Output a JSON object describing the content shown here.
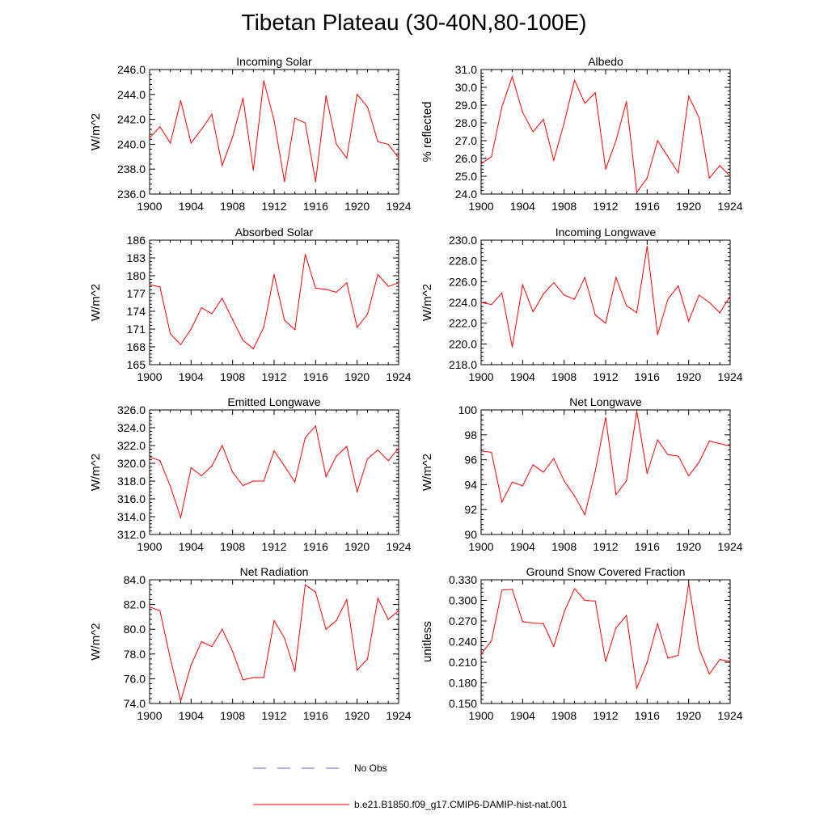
{
  "figure_title": "Tibetan Plateau (30-40N,80-100E)",
  "legend": {
    "obs_label": "No Obs",
    "model_label": "b.e21.B1850.f09_g17.CMIP6-DAMIP-hist-nat.001",
    "obs_color": "#6b6bd6",
    "model_color": "#ff0000"
  },
  "chart_data": [
    {
      "type": "line",
      "title": "Incoming Solar",
      "xlabel": "",
      "ylabel": "W/m^2",
      "xlim": [
        1900,
        1924
      ],
      "ylim": [
        236.0,
        246.0
      ],
      "xticks": [
        1900,
        1904,
        1908,
        1912,
        1916,
        1920,
        1924
      ],
      "yticks": [
        "236.0",
        "238.0",
        "240.0",
        "242.0",
        "244.0",
        "246.0"
      ],
      "series": [
        {
          "name": "b.e21.B1850.f09_g17.CMIP6-DAMIP-hist-nat.001",
          "color": "#ff0000",
          "x": [
            1900,
            1901,
            1902,
            1903,
            1904,
            1905,
            1906,
            1907,
            1908,
            1909,
            1910,
            1911,
            1912,
            1913,
            1914,
            1915,
            1916,
            1917,
            1918,
            1919,
            1920,
            1921,
            1922,
            1923,
            1924
          ],
          "y": [
            240.5,
            241.4,
            240.1,
            243.5,
            240.1,
            241.2,
            242.4,
            238.3,
            240.6,
            243.7,
            237.9,
            245.1,
            241.9,
            237.0,
            242.1,
            241.7,
            237.0,
            243.9,
            240.0,
            238.9,
            244.0,
            243.0,
            240.2,
            240.0,
            238.9
          ]
        }
      ]
    },
    {
      "type": "line",
      "title": "Albedo",
      "xlabel": "",
      "ylabel": "% reflected",
      "xlim": [
        1900,
        1924
      ],
      "ylim": [
        24.0,
        31.0
      ],
      "xticks": [
        1900,
        1904,
        1908,
        1912,
        1916,
        1920,
        1924
      ],
      "yticks": [
        "24.0",
        "25.0",
        "26.0",
        "27.0",
        "28.0",
        "29.0",
        "30.0",
        "31.0"
      ],
      "series": [
        {
          "name": "b.e21.B1850.f09_g17.CMIP6-DAMIP-hist-nat.001",
          "color": "#ff0000",
          "x": [
            1900,
            1901,
            1902,
            1903,
            1904,
            1905,
            1906,
            1907,
            1908,
            1909,
            1910,
            1911,
            1912,
            1913,
            1914,
            1915,
            1916,
            1917,
            1918,
            1919,
            1920,
            1921,
            1922,
            1923,
            1924
          ],
          "y": [
            25.7,
            26.1,
            28.9,
            30.6,
            28.6,
            27.5,
            28.2,
            25.9,
            28.0,
            30.4,
            29.1,
            29.7,
            25.4,
            27.0,
            29.2,
            24.1,
            24.9,
            27.0,
            26.1,
            25.2,
            29.5,
            28.3,
            24.9,
            25.6,
            25.0
          ]
        }
      ]
    },
    {
      "type": "line",
      "title": "Absorbed Solar",
      "xlabel": "",
      "ylabel": "W/m^2",
      "xlim": [
        1900,
        1924
      ],
      "ylim": [
        165,
        186
      ],
      "xticks": [
        1900,
        1904,
        1908,
        1912,
        1916,
        1920,
        1924
      ],
      "yticks": [
        "165",
        "168",
        "171",
        "174",
        "177",
        "180",
        "183",
        "186"
      ],
      "series": [
        {
          "name": "b.e21.B1850.f09_g17.CMIP6-DAMIP-hist-nat.001",
          "color": "#ff0000",
          "x": [
            1900,
            1901,
            1902,
            1903,
            1904,
            1905,
            1906,
            1907,
            1908,
            1909,
            1910,
            1911,
            1912,
            1913,
            1914,
            1915,
            1916,
            1917,
            1918,
            1919,
            1920,
            1921,
            1922,
            1923,
            1924
          ],
          "y": [
            178.5,
            178.1,
            170.2,
            168.4,
            171.0,
            174.6,
            173.6,
            176.2,
            172.6,
            169.1,
            167.7,
            171.3,
            180.2,
            172.5,
            170.9,
            183.6,
            177.9,
            177.7,
            177.2,
            178.8,
            171.3,
            173.5,
            180.2,
            178.2,
            178.8
          ]
        }
      ]
    },
    {
      "type": "line",
      "title": "Incoming Longwave",
      "xlabel": "",
      "ylabel": "W/m^2",
      "xlim": [
        1900,
        1924
      ],
      "ylim": [
        218.0,
        230.0
      ],
      "xticks": [
        1900,
        1904,
        1908,
        1912,
        1916,
        1920,
        1924
      ],
      "yticks": [
        "218.0",
        "220.0",
        "222.0",
        "224.0",
        "226.0",
        "228.0",
        "230.0"
      ],
      "series": [
        {
          "name": "b.e21.B1850.f09_g17.CMIP6-DAMIP-hist-nat.001",
          "color": "#ff0000",
          "x": [
            1900,
            1901,
            1902,
            1903,
            1904,
            1905,
            1906,
            1907,
            1908,
            1909,
            1910,
            1911,
            1912,
            1913,
            1914,
            1915,
            1916,
            1917,
            1918,
            1919,
            1920,
            1921,
            1922,
            1923,
            1924
          ],
          "y": [
            224.0,
            223.8,
            224.9,
            219.7,
            225.7,
            223.1,
            224.8,
            225.9,
            224.7,
            224.3,
            226.4,
            222.8,
            222.0,
            226.4,
            223.7,
            223.0,
            229.4,
            220.9,
            224.3,
            225.6,
            222.2,
            224.7,
            224.0,
            223.0,
            224.6
          ]
        }
      ]
    },
    {
      "type": "line",
      "title": "Emitted Longwave",
      "xlabel": "",
      "ylabel": "W/m^2",
      "xlim": [
        1900,
        1924
      ],
      "ylim": [
        312.0,
        326.0
      ],
      "xticks": [
        1900,
        1904,
        1908,
        1912,
        1916,
        1920,
        1924
      ],
      "yticks": [
        "312.0",
        "314.0",
        "316.0",
        "318.0",
        "320.0",
        "322.0",
        "324.0",
        "326.0"
      ],
      "series": [
        {
          "name": "b.e21.B1850.f09_g17.CMIP6-DAMIP-hist-nat.001",
          "color": "#ff0000",
          "x": [
            1900,
            1901,
            1902,
            1903,
            1904,
            1905,
            1906,
            1907,
            1908,
            1909,
            1910,
            1911,
            1912,
            1913,
            1914,
            1915,
            1916,
            1917,
            1918,
            1919,
            1920,
            1921,
            1922,
            1923,
            1924
          ],
          "y": [
            320.7,
            320.3,
            317.4,
            313.9,
            319.5,
            318.6,
            319.7,
            322.0,
            319.0,
            317.5,
            318.0,
            318.0,
            321.4,
            319.7,
            317.9,
            322.9,
            324.2,
            318.5,
            320.8,
            321.9,
            316.8,
            320.5,
            321.5,
            320.3,
            321.7
          ]
        }
      ]
    },
    {
      "type": "line",
      "title": "Net Longwave",
      "xlabel": "",
      "ylabel": "W/m^2",
      "xlim": [
        1900,
        1924
      ],
      "ylim": [
        90,
        100
      ],
      "xticks": [
        1900,
        1904,
        1908,
        1912,
        1916,
        1920,
        1924
      ],
      "yticks": [
        "90",
        "92",
        "94",
        "96",
        "98",
        "100"
      ],
      "series": [
        {
          "name": "b.e21.B1850.f09_g17.CMIP6-DAMIP-hist-nat.001",
          "color": "#ff0000",
          "x": [
            1900,
            1901,
            1902,
            1903,
            1904,
            1905,
            1906,
            1907,
            1908,
            1909,
            1910,
            1911,
            1912,
            1913,
            1914,
            1915,
            1916,
            1917,
            1918,
            1919,
            1920,
            1921,
            1922,
            1923,
            1924
          ],
          "y": [
            96.7,
            96.6,
            92.6,
            94.2,
            93.9,
            95.6,
            95.0,
            96.1,
            94.3,
            93.1,
            91.6,
            95.1,
            99.4,
            93.2,
            94.3,
            99.9,
            94.9,
            97.6,
            96.4,
            96.3,
            94.7,
            95.8,
            97.5,
            97.3,
            97.1
          ]
        }
      ]
    },
    {
      "type": "line",
      "title": "Net Radiation",
      "xlabel": "",
      "ylabel": "W/m^2",
      "xlim": [
        1900,
        1924
      ],
      "ylim": [
        74.0,
        84.0
      ],
      "xticks": [
        1900,
        1904,
        1908,
        1912,
        1916,
        1920,
        1924
      ],
      "yticks": [
        "74.0",
        "76.0",
        "78.0",
        "80.0",
        "82.0",
        "84.0"
      ],
      "series": [
        {
          "name": "b.e21.B1850.f09_g17.CMIP6-DAMIP-hist-nat.001",
          "color": "#ff0000",
          "x": [
            1900,
            1901,
            1902,
            1903,
            1904,
            1905,
            1906,
            1907,
            1908,
            1909,
            1910,
            1911,
            1912,
            1913,
            1914,
            1915,
            1916,
            1917,
            1918,
            1919,
            1920,
            1921,
            1922,
            1923,
            1924
          ],
          "y": [
            81.8,
            81.5,
            77.6,
            74.2,
            77.1,
            79.0,
            78.6,
            80.0,
            78.2,
            75.9,
            76.1,
            76.1,
            80.7,
            79.3,
            76.6,
            83.6,
            83.0,
            80.0,
            80.7,
            82.4,
            76.7,
            77.6,
            82.5,
            80.8,
            81.5
          ]
        }
      ]
    },
    {
      "type": "line",
      "title": "Ground Snow Covered Fraction",
      "xlabel": "",
      "ylabel": "unitless",
      "xlim": [
        1900,
        1924
      ],
      "ylim": [
        0.15,
        0.33
      ],
      "xticks": [
        1900,
        1904,
        1908,
        1912,
        1916,
        1920,
        1924
      ],
      "yticks": [
        "0.150",
        "0.180",
        "0.210",
        "0.240",
        "0.270",
        "0.300",
        "0.330"
      ],
      "series": [
        {
          "name": "b.e21.B1850.f09_g17.CMIP6-DAMIP-hist-nat.001",
          "color": "#ff0000",
          "x": [
            1900,
            1901,
            1902,
            1903,
            1904,
            1905,
            1906,
            1907,
            1908,
            1909,
            1910,
            1911,
            1912,
            1913,
            1914,
            1915,
            1916,
            1917,
            1918,
            1919,
            1920,
            1921,
            1922,
            1923,
            1924
          ],
          "y": [
            0.222,
            0.241,
            0.315,
            0.316,
            0.269,
            0.267,
            0.266,
            0.233,
            0.283,
            0.317,
            0.3,
            0.299,
            0.211,
            0.26,
            0.278,
            0.172,
            0.21,
            0.266,
            0.216,
            0.22,
            0.325,
            0.23,
            0.193,
            0.214,
            0.211
          ]
        }
      ]
    }
  ]
}
